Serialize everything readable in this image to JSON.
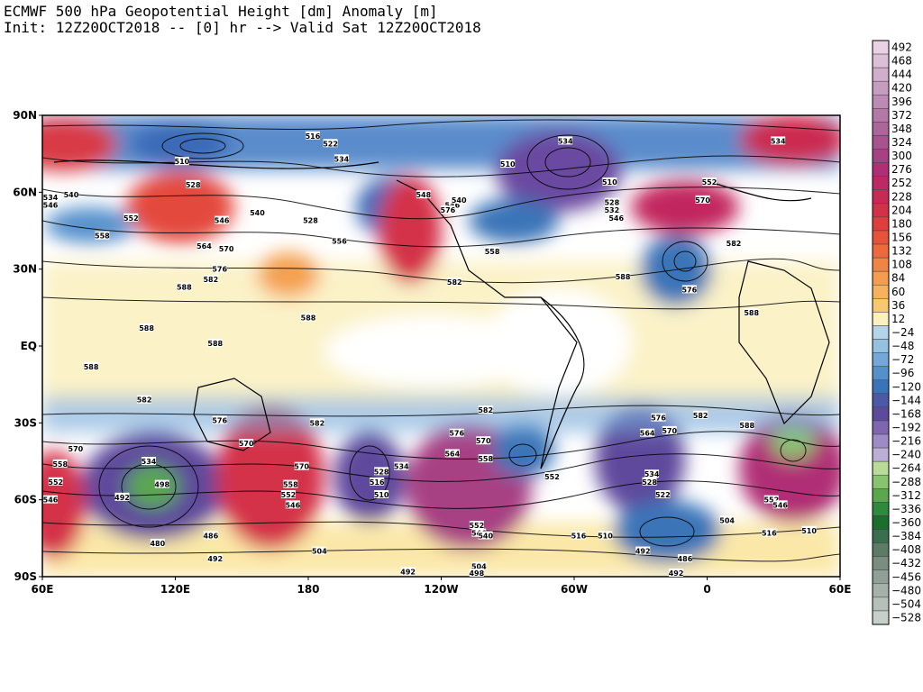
{
  "title_line1": "ECMWF 500 hPa Geopotential Height [dm] Anomaly [m]",
  "title_line2": "Init: 12Z20OCT2018 -- [0] hr --> Valid Sat 12Z20OCT2018",
  "lat_labels": [
    "90N",
    "60N",
    "30N",
    "EQ",
    "30S",
    "60S",
    "90S"
  ],
  "lon_labels": [
    "60E",
    "120E",
    "180",
    "120W",
    "60W",
    "0",
    "60E"
  ],
  "colorbar": {
    "labels": [
      "492",
      "468",
      "444",
      "420",
      "396",
      "372",
      "348",
      "324",
      "300",
      "276",
      "252",
      "228",
      "204",
      "180",
      "156",
      "132",
      "108",
      "84",
      "60",
      "36",
      "12",
      "−24",
      "−48",
      "−72",
      "−96",
      "−120",
      "−144",
      "−168",
      "−192",
      "−216",
      "−240",
      "−264",
      "−288",
      "−312",
      "−336",
      "−360",
      "−384",
      "−408",
      "−432",
      "−456",
      "−480",
      "−504",
      "−528"
    ],
    "colors": [
      "#e8d2e4",
      "#dcc0d8",
      "#d0aecc",
      "#c69cc0",
      "#bc8ab4",
      "#b478a8",
      "#ac669c",
      "#a85290",
      "#a84084",
      "#b02e76",
      "#bc2a66",
      "#c82a56",
      "#d43048",
      "#de3e3c",
      "#e6523a",
      "#ec6a3c",
      "#f08444",
      "#f49c50",
      "#f6b25e",
      "#f8c870",
      "#faf0c0",
      "#b4d4ea",
      "#94c0e2",
      "#74a8d8",
      "#5490cc",
      "#3a74b8",
      "#4a5aa8",
      "#5e4a9c",
      "#7e66b0",
      "#9e8ac4",
      "#bcaed6",
      "#b8dc98",
      "#88c46e",
      "#5aa84e",
      "#2e8a3c",
      "#1c6e2c",
      "#3a6e4c",
      "#5c7c66",
      "#7a8e80",
      "#90a098",
      "#a4b2aa",
      "#b6c0ba",
      "#c8ceca"
    ]
  },
  "contour_labels": [
    {
      "text": "516",
      "lon": 182,
      "lat": 82
    },
    {
      "text": "522",
      "lon": 190,
      "lat": 79
    },
    {
      "text": "534",
      "lon": 195,
      "lat": 73
    },
    {
      "text": "510",
      "lon": 123,
      "lat": 72
    },
    {
      "text": "528",
      "lon": 128,
      "lat": 63
    },
    {
      "text": "534",
      "lon": 60,
      "lat": 58
    },
    {
      "text": "540",
      "lon": 73,
      "lat": 59
    },
    {
      "text": "546",
      "lon": 63,
      "lat": 55
    },
    {
      "text": "552",
      "lon": 100,
      "lat": 50
    },
    {
      "text": "558",
      "lon": 87,
      "lat": 43
    },
    {
      "text": "546",
      "lon": 141,
      "lat": 49
    },
    {
      "text": "540",
      "lon": 157,
      "lat": 52
    },
    {
      "text": "528",
      "lon": 181,
      "lat": 49
    },
    {
      "text": "556",
      "lon": 194,
      "lat": 41
    },
    {
      "text": "564",
      "lon": 133,
      "lat": 39
    },
    {
      "text": "570",
      "lon": 143,
      "lat": 38
    },
    {
      "text": "576",
      "lon": 140,
      "lat": 30
    },
    {
      "text": "582",
      "lon": 136,
      "lat": 26
    },
    {
      "text": "588",
      "lon": 124,
      "lat": 23
    },
    {
      "text": "582",
      "lon": 246,
      "lat": 25
    },
    {
      "text": "588",
      "lon": 180,
      "lat": 11
    },
    {
      "text": "588",
      "lon": 107,
      "lat": 7
    },
    {
      "text": "588",
      "lon": 138,
      "lat": 1
    },
    {
      "text": "588",
      "lon": 82,
      "lat": -8
    },
    {
      "text": "548",
      "lon": 232,
      "lat": 59
    },
    {
      "text": "546",
      "lon": 245,
      "lat": 55
    },
    {
      "text": "576",
      "lon": 243,
      "lat": 53
    },
    {
      "text": "540",
      "lon": 248,
      "lat": 57
    },
    {
      "text": "510",
      "lon": 270,
      "lat": 71
    },
    {
      "text": "534",
      "lon": 296,
      "lat": 80
    },
    {
      "text": "510",
      "lon": 316,
      "lat": 64
    },
    {
      "text": "528",
      "lon": 317,
      "lat": 56
    },
    {
      "text": "532",
      "lon": 317,
      "lat": 53
    },
    {
      "text": "546",
      "lon": 319,
      "lat": 50
    },
    {
      "text": "558",
      "lon": 263,
      "lat": 37
    },
    {
      "text": "588",
      "lon": 322,
      "lat": 27
    },
    {
      "text": "576",
      "lon": 352,
      "lat": 22
    },
    {
      "text": "552",
      "lon": 361,
      "lat": 64
    },
    {
      "text": "570",
      "lon": 358,
      "lat": 57
    },
    {
      "text": "582",
      "lon": 372,
      "lat": 40
    },
    {
      "text": "534",
      "lon": 392,
      "lat": 80
    },
    {
      "text": "588",
      "lon": 380,
      "lat": 13
    },
    {
      "text": "582",
      "lon": 106,
      "lat": -21
    },
    {
      "text": "570",
      "lon": 75,
      "lat": -40
    },
    {
      "text": "558",
      "lon": 68,
      "lat": -46
    },
    {
      "text": "552",
      "lon": 66,
      "lat": -53
    },
    {
      "text": "546",
      "lon": 62,
      "lat": -60
    },
    {
      "text": "534",
      "lon": 108,
      "lat": -45
    },
    {
      "text": "498",
      "lon": 114,
      "lat": -54
    },
    {
      "text": "492",
      "lon": 96,
      "lat": -59
    },
    {
      "text": "480",
      "lon": 112,
      "lat": -77
    },
    {
      "text": "486",
      "lon": 136,
      "lat": -74
    },
    {
      "text": "492",
      "lon": 138,
      "lat": -83
    },
    {
      "text": "576",
      "lon": 140,
      "lat": -29
    },
    {
      "text": "570",
      "lon": 152,
      "lat": -38
    },
    {
      "text": "582",
      "lon": 184,
      "lat": -30
    },
    {
      "text": "570",
      "lon": 177,
      "lat": -47
    },
    {
      "text": "558",
      "lon": 172,
      "lat": -54
    },
    {
      "text": "552",
      "lon": 171,
      "lat": -58
    },
    {
      "text": "546",
      "lon": 173,
      "lat": -62
    },
    {
      "text": "504",
      "lon": 185,
      "lat": -80
    },
    {
      "text": "528",
      "lon": 213,
      "lat": -49
    },
    {
      "text": "534",
      "lon": 222,
      "lat": -47
    },
    {
      "text": "516",
      "lon": 211,
      "lat": -53
    },
    {
      "text": "510",
      "lon": 213,
      "lat": -58
    },
    {
      "text": "492",
      "lon": 225,
      "lat": -88
    },
    {
      "text": "582",
      "lon": 260,
      "lat": -25
    },
    {
      "text": "576",
      "lon": 247,
      "lat": -34
    },
    {
      "text": "564",
      "lon": 245,
      "lat": -42
    },
    {
      "text": "570",
      "lon": 259,
      "lat": -37
    },
    {
      "text": "558",
      "lon": 260,
      "lat": -44
    },
    {
      "text": "552",
      "lon": 290,
      "lat": -51
    },
    {
      "text": "552",
      "lon": 256,
      "lat": -70
    },
    {
      "text": "546",
      "lon": 257,
      "lat": -73
    },
    {
      "text": "540",
      "lon": 260,
      "lat": -74
    },
    {
      "text": "504",
      "lon": 257,
      "lat": -86
    },
    {
      "text": "498",
      "lon": 256,
      "lat": -91
    },
    {
      "text": "516",
      "lon": 302,
      "lat": -74
    },
    {
      "text": "510",
      "lon": 314,
      "lat": -74
    },
    {
      "text": "492",
      "lon": 331,
      "lat": -80
    },
    {
      "text": "576",
      "lon": 338,
      "lat": -28
    },
    {
      "text": "564",
      "lon": 333,
      "lat": -34
    },
    {
      "text": "570",
      "lon": 343,
      "lat": -33
    },
    {
      "text": "582",
      "lon": 357,
      "lat": -27
    },
    {
      "text": "534",
      "lon": 335,
      "lat": -50
    },
    {
      "text": "528",
      "lon": 334,
      "lat": -53
    },
    {
      "text": "522",
      "lon": 340,
      "lat": -58
    },
    {
      "text": "504",
      "lon": 369,
      "lat": -68
    },
    {
      "text": "486",
      "lon": 350,
      "lat": -83
    },
    {
      "text": "492",
      "lon": 346,
      "lat": -93
    },
    {
      "text": "588",
      "lon": 378,
      "lat": -31
    },
    {
      "text": "552",
      "lon": 389,
      "lat": -60
    },
    {
      "text": "546",
      "lon": 393,
      "lat": -62
    },
    {
      "text": "516",
      "lon": 388,
      "lat": -73
    },
    {
      "text": "510",
      "lon": 406,
      "lat": -72
    }
  ],
  "colors": {
    "background": "#ffffff",
    "map_border": "#000000"
  }
}
